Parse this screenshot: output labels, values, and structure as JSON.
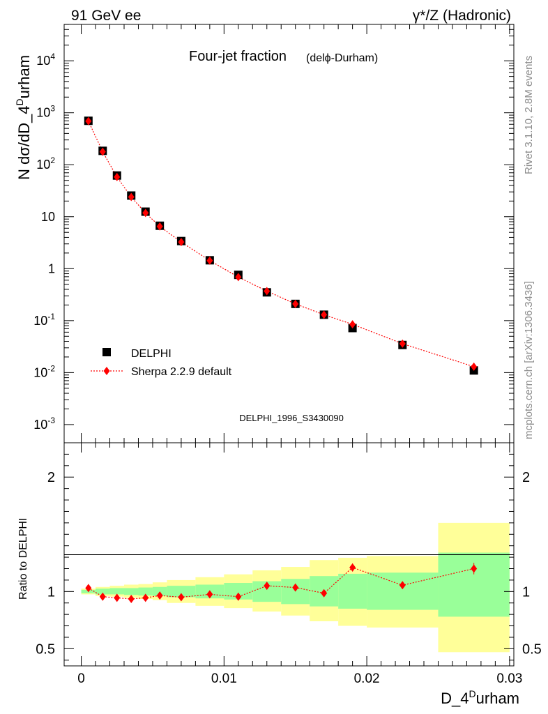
{
  "header": {
    "left": "91 GeV ee",
    "right": "γ*/Z (Hadronic)"
  },
  "side_labels": {
    "top": "Rivet 3.1.10,  2.8M events",
    "bottom": "mcplots.cern.ch [arXiv:1306.3436]"
  },
  "analysis_id": "DELPHI_1996_S3430090",
  "colors": {
    "data": "#000000",
    "mc": "#ff0000",
    "band_inner": "#99ff99",
    "band_outer": "#ffff99",
    "watermark": "#999999"
  },
  "chart_data": [
    {
      "type": "scatter",
      "title": "Four-jet fraction",
      "subtitle": "(delϕ-Durham)",
      "ylabel": "N dσ/dD_4^Durham",
      "xlim": [
        -0.0012,
        0.0303
      ],
      "ylim_log10": [
        -3.35,
        4.7
      ],
      "yscale": "log",
      "y_tick_labels": [
        "10^-3",
        "10^-2",
        "10^-1",
        "1",
        "10",
        "10^2",
        "10^3",
        "10^4"
      ],
      "legend": {
        "position": "bottom-left",
        "entries": [
          "DELPHI",
          "Sherpa 2.2.9 default"
        ]
      },
      "x": [
        0.0005,
        0.0015,
        0.0025,
        0.0035,
        0.0045,
        0.0055,
        0.007,
        0.009,
        0.011,
        0.013,
        0.015,
        0.017,
        0.019,
        0.0225,
        0.0275
      ],
      "series": [
        {
          "name": "DELPHI",
          "marker": "square",
          "values": [
            700,
            185,
            62,
            25.5,
            12.5,
            6.7,
            3.4,
            1.45,
            0.76,
            0.35,
            0.21,
            0.13,
            0.072,
            0.034,
            0.011
          ]
        },
        {
          "name": "Sherpa 2.2.9 default",
          "marker": "diamond",
          "values": [
            690,
            178,
            58,
            24,
            11.8,
            6.5,
            3.25,
            1.43,
            0.69,
            0.37,
            0.21,
            0.13,
            0.085,
            0.036,
            0.013
          ]
        }
      ]
    },
    {
      "type": "scatter",
      "ylabel": "Ratio to DELPHI",
      "xlabel": "D_4^Durham",
      "xlim": [
        -0.0012,
        0.0303
      ],
      "ylim": [
        0.35,
        2.3
      ],
      "y_ticks": [
        0.5,
        1,
        2
      ],
      "y_tick_labels": [
        "0.5",
        "1",
        "2"
      ],
      "x_ticks": [
        0,
        0.01,
        0.02,
        0.03
      ],
      "x_tick_labels": [
        "0",
        "0.01",
        "0.02",
        "0.03"
      ],
      "x_edges": [
        0,
        0.001,
        0.002,
        0.003,
        0.004,
        0.005,
        0.006,
        0.008,
        0.01,
        0.012,
        0.014,
        0.016,
        0.018,
        0.02,
        0.025,
        0.03
      ],
      "band_inner": [
        [
          0.985,
          1.015
        ],
        [
          0.975,
          1.025
        ],
        [
          0.975,
          1.03
        ],
        [
          0.97,
          1.03
        ],
        [
          0.965,
          1.035
        ],
        [
          0.96,
          1.04
        ],
        [
          0.95,
          1.05
        ],
        [
          0.94,
          1.06
        ],
        [
          0.93,
          1.075
        ],
        [
          0.91,
          1.09
        ],
        [
          0.89,
          1.11
        ],
        [
          0.87,
          1.135
        ],
        [
          0.85,
          1.155
        ],
        [
          0.84,
          1.165
        ],
        [
          0.78,
          1.34
        ]
      ],
      "band_outer": [
        [
          0.975,
          1.025
        ],
        [
          0.96,
          1.04
        ],
        [
          0.955,
          1.05
        ],
        [
          0.945,
          1.06
        ],
        [
          0.935,
          1.065
        ],
        [
          0.925,
          1.08
        ],
        [
          0.9,
          1.1
        ],
        [
          0.875,
          1.125
        ],
        [
          0.855,
          1.15
        ],
        [
          0.825,
          1.185
        ],
        [
          0.79,
          1.215
        ],
        [
          0.74,
          1.275
        ],
        [
          0.7,
          1.295
        ],
        [
          0.685,
          1.31
        ],
        [
          0.47,
          1.6
        ]
      ],
      "series": [
        {
          "name": "Sherpa 2.2.9 default",
          "values": [
            1.03,
            0.955,
            0.945,
            0.935,
            0.945,
            0.965,
            0.95,
            0.975,
            0.955,
            1.05,
            1.035,
            0.985,
            1.21,
            1.055,
            1.2
          ],
          "errors": [
            0.01,
            0.01,
            0.01,
            0.01,
            0.01,
            0.01,
            0.01,
            0.012,
            0.015,
            0.02,
            0.02,
            0.025,
            0.035,
            0.025,
            0.05
          ]
        }
      ]
    }
  ]
}
